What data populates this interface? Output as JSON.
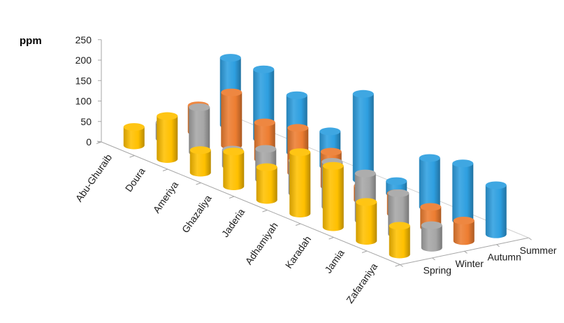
{
  "chart_data": {
    "type": "bar",
    "subtype": "3d-cylinder",
    "title": "",
    "ylabel": "ppm",
    "ylim": [
      0,
      250
    ],
    "yticks": [
      "0",
      "50",
      "100",
      "150",
      "200",
      "250"
    ],
    "grid": false,
    "legend": "none",
    "categories": [
      "Abu-Ghuraib",
      "Doura",
      "Ameriya",
      "Ghazaliya",
      "Jaderia",
      "Adhamiyah",
      "Karadah",
      "Jamia",
      "Zafaraniya"
    ],
    "series": [
      {
        "name": "Spring",
        "color": "#FFC000",
        "values": [
          45,
          105,
          55,
          85,
          80,
          150,
          150,
          95,
          70
        ]
      },
      {
        "name": "Winter",
        "color": "#A6A6A6",
        "values": [
          40,
          110,
          40,
          75,
          80,
          110,
          115,
          100,
          55
        ]
      },
      {
        "name": "Autumn",
        "color": "#ED7D31",
        "values": [
          65,
          130,
          90,
          110,
          85,
          35,
          50,
          50,
          50
        ]
      },
      {
        "name": "Summer",
        "color": "#2E9FE0",
        "values": [
          165,
          170,
          140,
          85,
          210,
          30,
          120,
          140,
          120
        ]
      }
    ]
  }
}
